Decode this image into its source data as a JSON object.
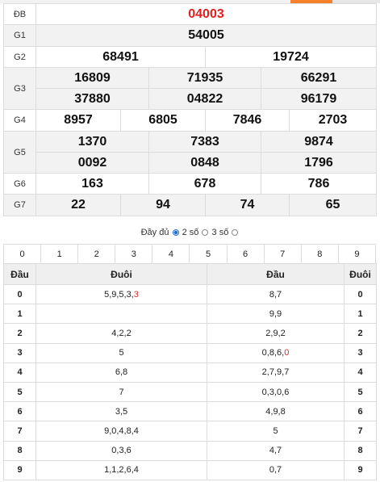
{
  "colors": {
    "accent_orange": "#f5822a",
    "special_red": "#e02020",
    "radio_blue": "#1e6fd9",
    "row_shade": "#f2f2f2"
  },
  "prizes": {
    "db": {
      "label": "ĐB",
      "numbers": [
        "04003"
      ]
    },
    "g1": {
      "label": "G1",
      "numbers": [
        "54005"
      ]
    },
    "g2": {
      "label": "G2",
      "numbers": [
        "68491",
        "19724"
      ]
    },
    "g3": {
      "label": "G3",
      "numbers": [
        "16809",
        "71935",
        "66291",
        "37880",
        "04822",
        "96179"
      ]
    },
    "g4": {
      "label": "G4",
      "numbers": [
        "8957",
        "6805",
        "7846",
        "2703"
      ]
    },
    "g5": {
      "label": "G5",
      "numbers": [
        "1370",
        "7383",
        "9874",
        "0092",
        "0848",
        "1796"
      ]
    },
    "g6": {
      "label": "G6",
      "numbers": [
        "163",
        "678",
        "786"
      ]
    },
    "g7": {
      "label": "G7",
      "numbers": [
        "22",
        "94",
        "74",
        "65"
      ]
    }
  },
  "options": {
    "full_label": "Đầy đủ",
    "two_digits_label": "2 số",
    "three_digits_label": "3 số",
    "selected": "full"
  },
  "digit_row": [
    "0",
    "1",
    "2",
    "3",
    "4",
    "5",
    "6",
    "7",
    "8",
    "9"
  ],
  "headtail": {
    "headers": {
      "dau": "Đầu",
      "duoi": "Đuôi"
    },
    "rows": [
      {
        "dau": "0",
        "duoi_left": "5,9,5,3,",
        "duoi_left_special": "3",
        "dau_right": "8,7",
        "dau_right_special": "",
        "duoi": "0"
      },
      {
        "dau": "1",
        "duoi_left": "",
        "duoi_left_special": "",
        "dau_right": "9,9",
        "dau_right_special": "",
        "duoi": "1"
      },
      {
        "dau": "2",
        "duoi_left": "4,2,2",
        "duoi_left_special": "",
        "dau_right": "2,9,2",
        "dau_right_special": "",
        "duoi": "2"
      },
      {
        "dau": "3",
        "duoi_left": "5",
        "duoi_left_special": "",
        "dau_right": "0,8,6,",
        "dau_right_special": "0",
        "duoi": "3"
      },
      {
        "dau": "4",
        "duoi_left": "6,8",
        "duoi_left_special": "",
        "dau_right": "2,7,9,7",
        "dau_right_special": "",
        "duoi": "4"
      },
      {
        "dau": "5",
        "duoi_left": "7",
        "duoi_left_special": "",
        "dau_right": "0,3,0,6",
        "dau_right_special": "",
        "duoi": "5"
      },
      {
        "dau": "6",
        "duoi_left": "3,5",
        "duoi_left_special": "",
        "dau_right": "4,9,8",
        "dau_right_special": "",
        "duoi": "6"
      },
      {
        "dau": "7",
        "duoi_left": "9,0,4,8,4",
        "duoi_left_special": "",
        "dau_right": "5",
        "dau_right_special": "",
        "duoi": "7"
      },
      {
        "dau": "8",
        "duoi_left": "0,3,6",
        "duoi_left_special": "",
        "dau_right": "4,7",
        "dau_right_special": "",
        "duoi": "8"
      },
      {
        "dau": "9",
        "duoi_left": "1,1,2,6,4",
        "duoi_left_special": "",
        "dau_right": "0,7",
        "dau_right_special": "",
        "duoi": "9"
      }
    ]
  }
}
